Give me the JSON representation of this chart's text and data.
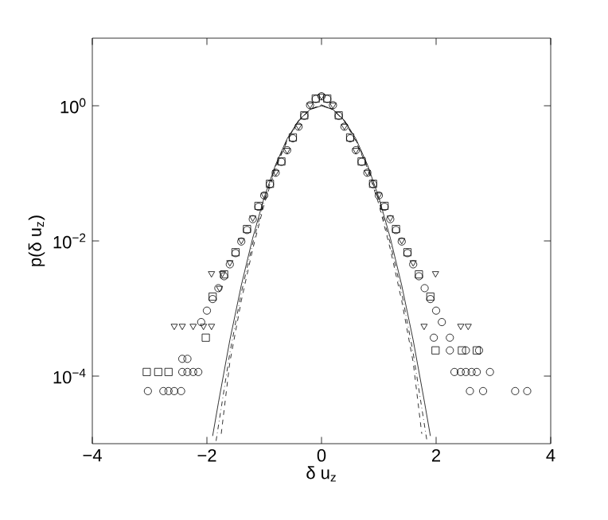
{
  "chart_data": {
    "type": "scatter",
    "xlabel": "δ u$_{z}$",
    "ylabel": "p(δ u$_{z}$)",
    "log": "y",
    "xlim": [
      -4,
      4
    ],
    "ylim": [
      1e-05,
      10
    ],
    "xticks": [
      {
        "value": -4,
        "label": "−4"
      },
      {
        "value": -2,
        "label": "−2"
      },
      0,
      2,
      4
    ],
    "yticks": [
      {
        "value": 0.0001,
        "label": "10$^{−4}$"
      },
      {
        "value": 0.01,
        "label": "10$^{−2}$"
      },
      {
        "value": 1,
        "label": "10$^{0}$"
      }
    ],
    "grid": false,
    "series": [
      {
        "color": "#000000",
        "marker": "circle",
        "x": [
          -3.03,
          -2.76,
          -2.67,
          -2.57,
          -2.45,
          -2.43,
          -2.34,
          -2.24,
          -2.15,
          -2.43,
          -2.34,
          -2.1,
          -2.0,
          -1.9,
          -1.8,
          -1.7,
          -1.6,
          -1.5,
          -1.4,
          -1.3,
          -1.2,
          -1.1,
          -1.0,
          -0.9,
          -0.8,
          -0.7,
          -0.6,
          -0.5,
          -0.4,
          -0.3,
          -0.2,
          -0.1,
          0,
          0.1,
          0.2,
          0.3,
          0.4,
          0.5,
          0.6,
          0.7,
          0.8,
          0.9,
          1.0,
          1.1,
          1.2,
          1.3,
          1.4,
          1.5,
          1.6,
          1.7,
          1.8,
          1.9,
          2.0,
          2.1,
          1.96,
          2.24,
          2.24,
          2.52,
          2.75,
          2.32,
          2.43,
          2.52,
          2.62,
          2.71,
          2.94,
          2.59,
          2.82,
          3.38,
          3.59
        ],
        "values": [
          6e-05,
          6e-05,
          6e-05,
          6e-05,
          6e-05,
          0.000115,
          0.000115,
          0.000115,
          0.000115,
          0.00018,
          0.00018,
          0.00063,
          0.00093,
          0.00138,
          0.002,
          0.003,
          0.0045,
          0.0066,
          0.0098,
          0.0145,
          0.021,
          0.032,
          0.047,
          0.069,
          0.102,
          0.148,
          0.22,
          0.33,
          0.49,
          0.71,
          1.02,
          1.26,
          1.38,
          1.26,
          1.02,
          0.71,
          0.49,
          0.33,
          0.22,
          0.148,
          0.102,
          0.069,
          0.047,
          0.032,
          0.021,
          0.0145,
          0.0098,
          0.0066,
          0.0045,
          0.003,
          0.002,
          0.00138,
          0.00093,
          0.00063,
          0.00037,
          0.00037,
          0.00024,
          0.00024,
          0.00024,
          0.000115,
          0.000115,
          0.000115,
          0.000115,
          0.000115,
          0.000115,
          6e-05,
          6e-05,
          6e-05,
          6e-05
        ]
      },
      {
        "color": "#000000",
        "marker": "square",
        "x": [
          -3.05,
          -2.85,
          -2.67,
          -2.02,
          -1.9,
          -1.7,
          -1.5,
          -1.3,
          -1.1,
          -0.9,
          -0.7,
          -0.5,
          -0.3,
          -0.1,
          0.1,
          0.3,
          0.5,
          0.7,
          0.9,
          1.1,
          1.3,
          1.5,
          1.7,
          1.9,
          1.99,
          2.45,
          2.71
        ],
        "values": [
          0.000115,
          0.000115,
          0.000115,
          0.00037,
          0.0015,
          0.0032,
          0.0068,
          0.015,
          0.033,
          0.07,
          0.15,
          0.34,
          0.72,
          1.28,
          1.28,
          0.72,
          0.34,
          0.15,
          0.07,
          0.033,
          0.015,
          0.0068,
          0.0032,
          0.0015,
          0.00024,
          0.00024,
          0.00024
        ]
      },
      {
        "color": "#000000",
        "marker": "triangle",
        "x": [
          -2.57,
          -2.43,
          -2.24,
          -2.06,
          -1.92,
          -1.92,
          -1.73,
          -1.78,
          -1.6,
          -1.4,
          -1.2,
          -1.0,
          -0.8,
          -0.6,
          -0.4,
          -0.2,
          0,
          0.2,
          0.4,
          0.6,
          0.8,
          1.0,
          1.2,
          1.4,
          1.6,
          1.99,
          1.79,
          2.43,
          2.56
        ],
        "values": [
          0.00055,
          0.00055,
          0.00055,
          0.00055,
          0.00055,
          0.0033,
          0.0033,
          0.002,
          0.0048,
          0.0102,
          0.022,
          0.048,
          0.104,
          0.22,
          0.5,
          1.03,
          1.4,
          1.03,
          0.5,
          0.22,
          0.104,
          0.048,
          0.022,
          0.0102,
          0.0048,
          0.0033,
          0.00055,
          0.00055,
          0.00055
        ]
      },
      {
        "type": "line",
        "color": "#000000",
        "marker": "none",
        "line_style": "solid",
        "x": [
          -1.9,
          -1.8,
          -1.6,
          -1.4,
          -1.2,
          -1.0,
          -0.8,
          -0.6,
          -0.4,
          -0.2,
          0,
          0.2,
          0.4,
          0.6,
          0.8,
          1.0,
          1.2,
          1.4,
          1.6,
          1.8,
          1.9
        ],
        "values": [
          1.3e-05,
          4e-05,
          0.00034,
          0.0022,
          0.0111,
          0.044,
          0.135,
          0.325,
          0.607,
          0.88,
          1.0,
          0.88,
          0.607,
          0.325,
          0.135,
          0.044,
          0.0111,
          0.0022,
          0.00034,
          4e-05,
          1.3e-05
        ]
      },
      {
        "type": "line",
        "color": "#000000",
        "marker": "none",
        "line_style": "dashed",
        "x": [
          -1.75,
          -1.6,
          -1.4,
          -1.2,
          -1.0,
          -0.8,
          -0.6,
          -0.4,
          -0.2,
          0,
          0.2,
          0.4,
          0.6,
          0.8,
          1.0,
          1.2,
          1.4,
          1.6,
          1.75
        ],
        "values": [
          1.4e-05,
          0.00016,
          0.0013,
          0.0076,
          0.035,
          0.12,
          0.3,
          0.59,
          0.88,
          1.03,
          0.88,
          0.59,
          0.3,
          0.12,
          0.035,
          0.0076,
          0.0013,
          0.00016,
          1.4e-05
        ]
      },
      {
        "type": "line",
        "color": "#000000",
        "marker": "none",
        "line_style": "dotted",
        "x": [
          -1.84,
          -1.6,
          -1.4,
          -1.2,
          -1.0,
          -0.8,
          -0.6,
          -0.4,
          -0.2,
          0,
          0.2,
          0.4,
          0.6,
          0.8,
          1.0,
          1.2,
          1.4,
          1.6,
          1.84
        ],
        "values": [
          1.1e-05,
          0.00022,
          0.0017,
          0.0092,
          0.039,
          0.127,
          0.31,
          0.6,
          0.88,
          1.02,
          0.88,
          0.6,
          0.31,
          0.127,
          0.039,
          0.0092,
          0.0017,
          0.00022,
          1.1e-05
        ]
      }
    ]
  }
}
